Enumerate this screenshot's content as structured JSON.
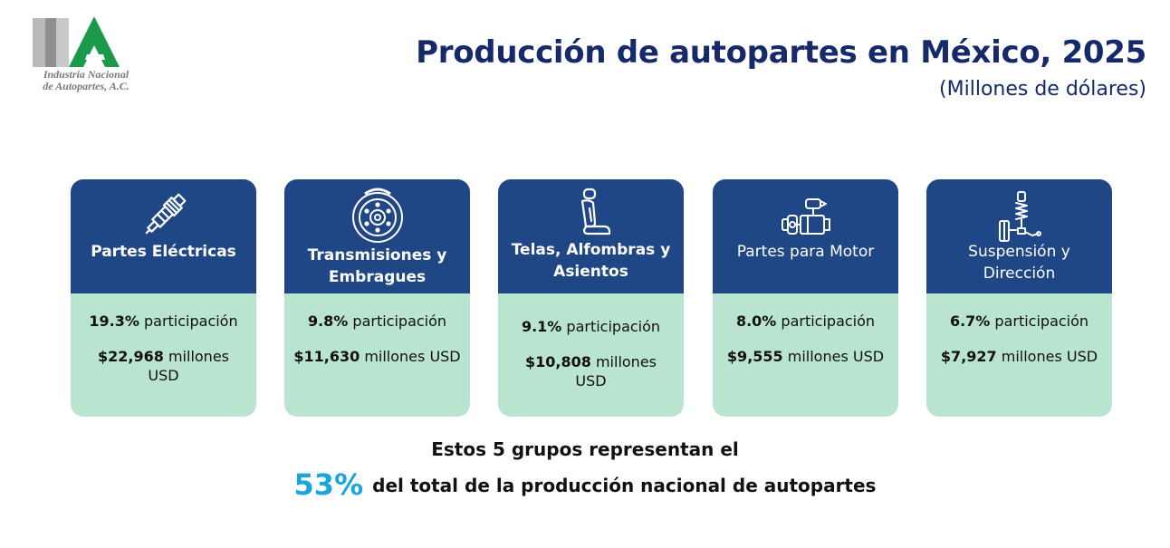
{
  "logo": {
    "text_line1": "Industria Nacional",
    "text_line2": "de Autopartes, A.C.",
    "accent": "#1a9a4a"
  },
  "header": {
    "title": "Producción de autopartes en México, 2025",
    "subtitle": "(Millones de dólares)"
  },
  "colors": {
    "card_head": "#1f4685",
    "card_body": "#b8e4d0",
    "title": "#15296b",
    "highlight": "#1aa5dc"
  },
  "cards": [
    {
      "icon": "spark-plug-icon",
      "category": "Partes Eléctricas",
      "share_value": "19.3%",
      "share_label": " participación",
      "amount_value": "$22,968",
      "amount_unit": " millones USD"
    },
    {
      "icon": "brake-disc-icon",
      "category": "Transmisiones y Embragues",
      "share_value": "9.8%",
      "share_label": " participación",
      "amount_value": "$11,630",
      "amount_unit": " millones USD"
    },
    {
      "icon": "car-seat-icon",
      "category": "Telas, Alfombras y Asientos",
      "share_value": "9.1%",
      "share_label": " participación",
      "amount_value": "$10,808",
      "amount_unit": " millones USD"
    },
    {
      "icon": "engine-parts-icon",
      "category": "Partes para Motor",
      "share_value": "8.0%",
      "share_label": " participación",
      "amount_value": "$9,555",
      "amount_unit": " millones USD"
    },
    {
      "icon": "suspension-icon",
      "category": "Suspensión y Dirección",
      "share_value": "6.7%",
      "share_label": " participación",
      "amount_value": "$7,927",
      "amount_unit": " millones USD"
    }
  ],
  "footer": {
    "line1": "Estos 5 grupos representan el",
    "percent": "53%",
    "line2": "del total de la producción nacional de autopartes"
  }
}
